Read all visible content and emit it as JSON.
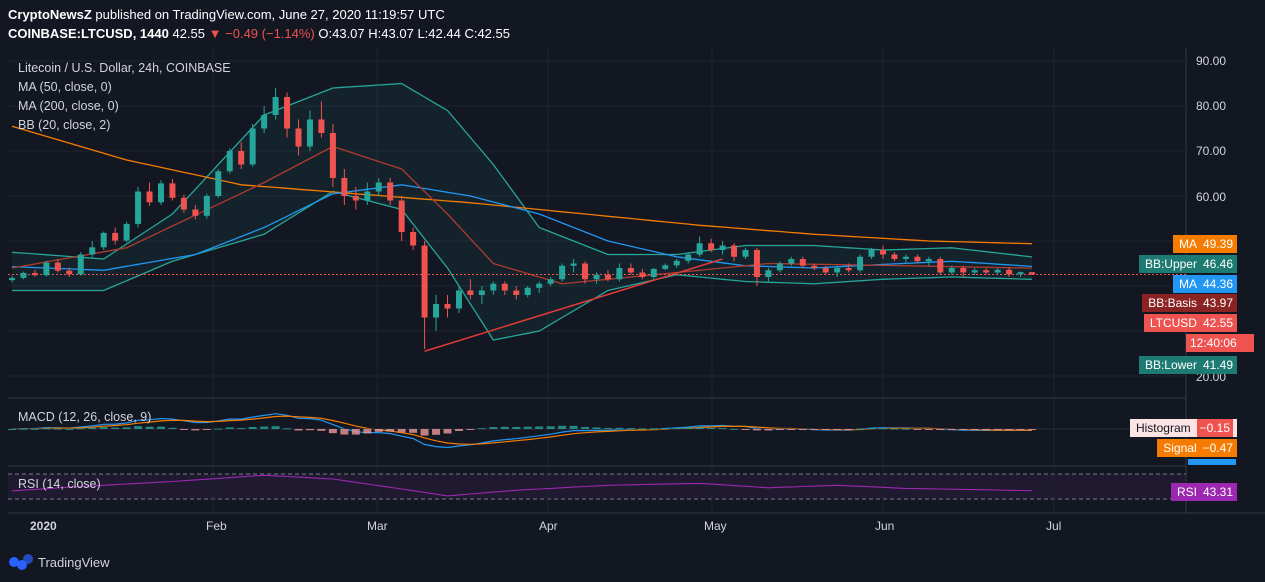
{
  "header": {
    "publisher": "CryptoNewsZ",
    "published_text": "published on TradingView.com, June 27, 2020 11:19:57 UTC",
    "symbol": "COINBASE:LTCUSD, 1440",
    "last": "42.55",
    "change": "−0.49 (−1.14%)",
    "open": "O:43.07",
    "high": "H:43.07",
    "low": "L:42.44",
    "close": "C:42.55"
  },
  "legend": {
    "title": "Litecoin / U.S. Dollar, 24h, COINBASE",
    "ma50": "MA (50, close, 0)",
    "ma200": "MA (200, close, 0)",
    "bb": "BB (20, close, 2)",
    "macd": "MACD (12, 26, close, 9)",
    "rsi": "RSI (14, close)"
  },
  "tags": {
    "ma200": {
      "label": "MA",
      "value": "49.39",
      "color": "#f57c00"
    },
    "bb_upper": {
      "label": "BB:Upper",
      "value": "46.46",
      "color": "#1e7b73"
    },
    "ma50": {
      "label": "MA",
      "value": "44.36",
      "color": "#2196f3"
    },
    "bb_basis": {
      "label": "BB:Basis",
      "value": "43.97",
      "color": "#8b2323"
    },
    "ltcusd": {
      "label": "LTCUSD",
      "value": "42.55",
      "color": "#ef5350"
    },
    "countdown": "12:40:06",
    "bb_lower": {
      "label": "BB:Lower",
      "value": "41.49",
      "color": "#1e7b73"
    },
    "histogram": {
      "label": "Histogram",
      "value": "−0.15",
      "color": "#fce4e4"
    },
    "signal": {
      "label": "Signal",
      "value": "−0.47",
      "color": "#f57c00"
    },
    "rsi": {
      "label": "RSI",
      "value": "43.31",
      "color": "#9c27b0"
    }
  },
  "footer": {
    "brand": "TradingView"
  },
  "chart_data": {
    "type": "candlestick",
    "price_axis": [
      "90.00",
      "80.00",
      "70.00",
      "60.00",
      "20.00"
    ],
    "time_axis": [
      "2020",
      "Feb",
      "Mar",
      "Apr",
      "May",
      "Jun",
      "Jul"
    ],
    "candles": [
      {
        "date": "2020-01-01",
        "o": 41.3,
        "h": 42.3,
        "l": 40.8,
        "c": 41.8
      },
      {
        "date": "2020-01-03",
        "o": 41.8,
        "h": 43.2,
        "l": 41.5,
        "c": 42.9
      },
      {
        "date": "2020-01-05",
        "o": 42.9,
        "h": 43.6,
        "l": 42.1,
        "c": 42.4
      },
      {
        "date": "2020-01-07",
        "o": 42.4,
        "h": 45.6,
        "l": 42.1,
        "c": 45.2
      },
      {
        "date": "2020-01-09",
        "o": 45.2,
        "h": 46.0,
        "l": 43.0,
        "c": 43.4
      },
      {
        "date": "2020-01-11",
        "o": 43.4,
        "h": 44.1,
        "l": 42.0,
        "c": 42.6
      },
      {
        "date": "2020-01-13",
        "o": 42.6,
        "h": 47.5,
        "l": 42.3,
        "c": 47.0
      },
      {
        "date": "2020-01-15",
        "o": 47.0,
        "h": 50.0,
        "l": 46.4,
        "c": 48.6
      },
      {
        "date": "2020-01-17",
        "o": 48.6,
        "h": 52.1,
        "l": 48.0,
        "c": 51.8
      },
      {
        "date": "2020-01-19",
        "o": 51.8,
        "h": 53.0,
        "l": 49.2,
        "c": 50.1
      },
      {
        "date": "2020-01-21",
        "o": 50.1,
        "h": 54.3,
        "l": 49.7,
        "c": 53.8
      },
      {
        "date": "2020-01-23",
        "o": 53.8,
        "h": 62.0,
        "l": 53.0,
        "c": 61.0
      },
      {
        "date": "2020-01-25",
        "o": 61.0,
        "h": 63.0,
        "l": 57.8,
        "c": 58.6
      },
      {
        "date": "2020-01-27",
        "o": 58.6,
        "h": 63.5,
        "l": 58.0,
        "c": 62.8
      },
      {
        "date": "2020-01-29",
        "o": 62.8,
        "h": 63.8,
        "l": 59.0,
        "c": 59.6
      },
      {
        "date": "2020-01-31",
        "o": 59.6,
        "h": 60.3,
        "l": 56.2,
        "c": 57.0
      },
      {
        "date": "2020-02-02",
        "o": 57.0,
        "h": 58.0,
        "l": 54.8,
        "c": 55.6
      },
      {
        "date": "2020-02-04",
        "o": 55.6,
        "h": 60.5,
        "l": 55.0,
        "c": 60.0
      },
      {
        "date": "2020-02-06",
        "o": 60.0,
        "h": 66.0,
        "l": 59.6,
        "c": 65.5
      },
      {
        "date": "2020-02-08",
        "o": 65.5,
        "h": 70.6,
        "l": 65.0,
        "c": 70.0
      },
      {
        "date": "2020-02-10",
        "o": 70.0,
        "h": 72.0,
        "l": 66.0,
        "c": 67.0
      },
      {
        "date": "2020-02-12",
        "o": 67.0,
        "h": 76.0,
        "l": 66.5,
        "c": 75.0
      },
      {
        "date": "2020-02-14",
        "o": 75.0,
        "h": 80.0,
        "l": 74.0,
        "c": 78.0
      },
      {
        "date": "2020-02-16",
        "o": 78.0,
        "h": 84.0,
        "l": 77.0,
        "c": 82.0
      },
      {
        "date": "2020-02-18",
        "o": 82.0,
        "h": 83.0,
        "l": 73.0,
        "c": 75.0
      },
      {
        "date": "2020-02-20",
        "o": 75.0,
        "h": 77.0,
        "l": 69.0,
        "c": 71.0
      },
      {
        "date": "2020-02-22",
        "o": 71.0,
        "h": 79.0,
        "l": 70.0,
        "c": 77.0
      },
      {
        "date": "2020-02-24",
        "o": 77.0,
        "h": 81.0,
        "l": 73.0,
        "c": 74.0
      },
      {
        "date": "2020-02-26",
        "o": 74.0,
        "h": 76.0,
        "l": 62.0,
        "c": 64.0
      },
      {
        "date": "2020-02-28",
        "o": 64.0,
        "h": 66.0,
        "l": 58.0,
        "c": 60.0
      },
      {
        "date": "2020-03-01",
        "o": 60.0,
        "h": 62.0,
        "l": 57.0,
        "c": 59.0
      },
      {
        "date": "2020-03-03",
        "o": 59.0,
        "h": 63.0,
        "l": 58.0,
        "c": 61.0
      },
      {
        "date": "2020-03-05",
        "o": 61.0,
        "h": 64.0,
        "l": 60.0,
        "c": 63.0
      },
      {
        "date": "2020-03-07",
        "o": 63.0,
        "h": 64.0,
        "l": 58.0,
        "c": 59.0
      },
      {
        "date": "2020-03-09",
        "o": 59.0,
        "h": 60.0,
        "l": 50.0,
        "c": 52.0
      },
      {
        "date": "2020-03-11",
        "o": 52.0,
        "h": 53.0,
        "l": 48.0,
        "c": 49.0
      },
      {
        "date": "2020-03-13",
        "o": 49.0,
        "h": 50.0,
        "l": 26.0,
        "c": 33.0
      },
      {
        "date": "2020-03-15",
        "o": 33.0,
        "h": 38.0,
        "l": 30.0,
        "c": 36.0
      },
      {
        "date": "2020-03-17",
        "o": 36.0,
        "h": 38.0,
        "l": 33.0,
        "c": 35.0
      },
      {
        "date": "2020-03-19",
        "o": 35.0,
        "h": 40.0,
        "l": 34.0,
        "c": 39.0
      },
      {
        "date": "2020-03-21",
        "o": 39.0,
        "h": 41.5,
        "l": 37.0,
        "c": 38.0
      },
      {
        "date": "2020-03-23",
        "o": 38.0,
        "h": 40.0,
        "l": 36.0,
        "c": 39.0
      },
      {
        "date": "2020-03-25",
        "o": 39.0,
        "h": 41.0,
        "l": 38.0,
        "c": 40.5
      },
      {
        "date": "2020-03-27",
        "o": 40.5,
        "h": 41.0,
        "l": 38.0,
        "c": 39.0
      },
      {
        "date": "2020-03-29",
        "o": 39.0,
        "h": 40.0,
        "l": 37.0,
        "c": 38.0
      },
      {
        "date": "2020-03-31",
        "o": 38.0,
        "h": 40.0,
        "l": 37.5,
        "c": 39.6
      },
      {
        "date": "2020-04-02",
        "o": 39.6,
        "h": 41.0,
        "l": 38.5,
        "c": 40.5
      },
      {
        "date": "2020-04-04",
        "o": 40.5,
        "h": 42.0,
        "l": 40.0,
        "c": 41.5
      },
      {
        "date": "2020-04-06",
        "o": 41.5,
        "h": 45.0,
        "l": 41.0,
        "c": 44.5
      },
      {
        "date": "2020-04-08",
        "o": 44.5,
        "h": 46.0,
        "l": 43.0,
        "c": 45.0
      },
      {
        "date": "2020-04-10",
        "o": 45.0,
        "h": 45.5,
        "l": 40.5,
        "c": 41.5
      },
      {
        "date": "2020-04-12",
        "o": 41.5,
        "h": 43.0,
        "l": 40.5,
        "c": 42.5
      },
      {
        "date": "2020-04-14",
        "o": 42.5,
        "h": 43.5,
        "l": 41.0,
        "c": 41.5
      },
      {
        "date": "2020-04-16",
        "o": 41.5,
        "h": 45.0,
        "l": 41.0,
        "c": 44.0
      },
      {
        "date": "2020-04-18",
        "o": 44.0,
        "h": 45.0,
        "l": 42.5,
        "c": 43.0
      },
      {
        "date": "2020-04-20",
        "o": 43.0,
        "h": 43.8,
        "l": 41.5,
        "c": 42.0
      },
      {
        "date": "2020-04-22",
        "o": 42.0,
        "h": 44.0,
        "l": 41.5,
        "c": 43.8
      },
      {
        "date": "2020-04-24",
        "o": 43.8,
        "h": 45.0,
        "l": 43.5,
        "c": 44.6
      },
      {
        "date": "2020-04-26",
        "o": 44.6,
        "h": 46.0,
        "l": 44.0,
        "c": 45.6
      },
      {
        "date": "2020-04-28",
        "o": 45.6,
        "h": 47.5,
        "l": 45.0,
        "c": 47.0
      },
      {
        "date": "2020-04-30",
        "o": 47.0,
        "h": 51.0,
        "l": 46.5,
        "c": 49.5
      },
      {
        "date": "2020-05-02",
        "o": 49.5,
        "h": 50.5,
        "l": 47.5,
        "c": 48.0
      },
      {
        "date": "2020-05-04",
        "o": 48.0,
        "h": 50.0,
        "l": 47.0,
        "c": 49.0
      },
      {
        "date": "2020-05-06",
        "o": 49.0,
        "h": 49.5,
        "l": 45.5,
        "c": 46.5
      },
      {
        "date": "2020-05-08",
        "o": 46.5,
        "h": 48.5,
        "l": 46.0,
        "c": 48.0
      },
      {
        "date": "2020-05-10",
        "o": 48.0,
        "h": 48.5,
        "l": 40.0,
        "c": 42.0
      },
      {
        "date": "2020-05-12",
        "o": 42.0,
        "h": 44.0,
        "l": 41.0,
        "c": 43.5
      },
      {
        "date": "2020-05-14",
        "o": 43.5,
        "h": 45.5,
        "l": 43.0,
        "c": 45.0
      },
      {
        "date": "2020-05-16",
        "o": 45.0,
        "h": 46.5,
        "l": 44.5,
        "c": 46.0
      },
      {
        "date": "2020-05-18",
        "o": 46.0,
        "h": 46.5,
        "l": 44.0,
        "c": 44.5
      },
      {
        "date": "2020-05-20",
        "o": 44.5,
        "h": 45.0,
        "l": 43.5,
        "c": 44.0
      },
      {
        "date": "2020-05-22",
        "o": 44.0,
        "h": 44.5,
        "l": 42.5,
        "c": 43.0
      },
      {
        "date": "2020-05-24",
        "o": 43.0,
        "h": 44.5,
        "l": 42.0,
        "c": 44.0
      },
      {
        "date": "2020-05-26",
        "o": 44.0,
        "h": 45.0,
        "l": 43.0,
        "c": 43.5
      },
      {
        "date": "2020-05-28",
        "o": 43.5,
        "h": 47.0,
        "l": 43.0,
        "c": 46.5
      },
      {
        "date": "2020-05-30",
        "o": 46.5,
        "h": 48.5,
        "l": 46.0,
        "c": 48.0
      },
      {
        "date": "2020-06-01",
        "o": 48.0,
        "h": 49.0,
        "l": 46.0,
        "c": 47.0
      },
      {
        "date": "2020-06-03",
        "o": 47.0,
        "h": 47.5,
        "l": 45.5,
        "c": 46.0
      },
      {
        "date": "2020-06-05",
        "o": 46.0,
        "h": 47.0,
        "l": 45.0,
        "c": 46.5
      },
      {
        "date": "2020-06-07",
        "o": 46.5,
        "h": 47.0,
        "l": 45.0,
        "c": 45.5
      },
      {
        "date": "2020-06-09",
        "o": 45.5,
        "h": 46.5,
        "l": 44.5,
        "c": 46.0
      },
      {
        "date": "2020-06-11",
        "o": 46.0,
        "h": 46.5,
        "l": 42.5,
        "c": 43.0
      },
      {
        "date": "2020-06-13",
        "o": 43.0,
        "h": 44.5,
        "l": 42.5,
        "c": 44.0
      },
      {
        "date": "2020-06-15",
        "o": 44.0,
        "h": 44.5,
        "l": 42.0,
        "c": 43.0
      },
      {
        "date": "2020-06-17",
        "o": 43.0,
        "h": 44.0,
        "l": 42.5,
        "c": 43.5
      },
      {
        "date": "2020-06-19",
        "o": 43.5,
        "h": 44.0,
        "l": 42.5,
        "c": 43.0
      },
      {
        "date": "2020-06-21",
        "o": 43.0,
        "h": 44.0,
        "l": 42.6,
        "c": 43.6
      },
      {
        "date": "2020-06-23",
        "o": 43.6,
        "h": 44.2,
        "l": 42.0,
        "c": 42.6
      },
      {
        "date": "2020-06-25",
        "o": 42.6,
        "h": 43.2,
        "l": 42.0,
        "c": 43.07
      },
      {
        "date": "2020-06-27",
        "o": 43.07,
        "h": 43.07,
        "l": 42.44,
        "c": 42.55
      }
    ],
    "ma50": [
      [
        0,
        44.3
      ],
      [
        8,
        43.5
      ],
      [
        16,
        47.0
      ],
      [
        22,
        53.0
      ],
      [
        28,
        60.5
      ],
      [
        34,
        62.5
      ],
      [
        40,
        60.0
      ],
      [
        46,
        56.0
      ],
      [
        52,
        50.0
      ],
      [
        58,
        46.5
      ],
      [
        64,
        44.5
      ],
      [
        70,
        44.0
      ],
      [
        76,
        44.8
      ],
      [
        82,
        45.5
      ],
      [
        89,
        44.36
      ]
    ],
    "ma200": [
      [
        0,
        75.5
      ],
      [
        10,
        68.0
      ],
      [
        20,
        62.5
      ],
      [
        30,
        60.5
      ],
      [
        40,
        58.5
      ],
      [
        50,
        56.0
      ],
      [
        60,
        53.5
      ],
      [
        70,
        51.5
      ],
      [
        80,
        50.0
      ],
      [
        89,
        49.39
      ]
    ],
    "ma200_prior": [
      [
        0,
        44.0
      ],
      [
        10,
        48.5
      ],
      [
        22,
        63.0
      ],
      [
        28,
        71.0
      ],
      [
        34,
        66.0
      ],
      [
        38,
        56.0
      ],
      [
        42,
        45.0
      ],
      [
        48,
        40.5
      ],
      [
        56,
        42.5
      ],
      [
        66,
        45.0
      ],
      [
        78,
        44.5
      ],
      [
        89,
        43.97
      ]
    ],
    "bb_upper": [
      [
        0,
        47.5
      ],
      [
        8,
        46.0
      ],
      [
        14,
        56.0
      ],
      [
        22,
        78.0
      ],
      [
        28,
        84.0
      ],
      [
        34,
        85.0
      ],
      [
        38,
        79.0
      ],
      [
        42,
        67.0
      ],
      [
        46,
        53.0
      ],
      [
        52,
        47.0
      ],
      [
        58,
        47.0
      ],
      [
        64,
        49.0
      ],
      [
        70,
        49.0
      ],
      [
        76,
        48.0
      ],
      [
        82,
        48.5
      ],
      [
        89,
        46.46
      ]
    ],
    "bb_lower": [
      [
        0,
        39.0
      ],
      [
        8,
        39.0
      ],
      [
        14,
        45.5
      ],
      [
        22,
        51.5
      ],
      [
        28,
        61.0
      ],
      [
        34,
        57.0
      ],
      [
        38,
        44.0
      ],
      [
        42,
        28.0
      ],
      [
        46,
        30.0
      ],
      [
        52,
        39.0
      ],
      [
        58,
        42.5
      ],
      [
        64,
        41.0
      ],
      [
        70,
        40.5
      ],
      [
        76,
        41.5
      ],
      [
        82,
        42.0
      ],
      [
        89,
        41.49
      ]
    ],
    "trendline": [
      [
        36,
        25.5
      ],
      [
        62,
        46.0
      ]
    ],
    "rsi": [
      [
        0,
        43.0
      ],
      [
        6,
        50.0
      ],
      [
        14,
        58.0
      ],
      [
        22,
        68.0
      ],
      [
        28,
        62.0
      ],
      [
        34,
        46.0
      ],
      [
        38,
        35.0
      ],
      [
        44,
        44.0
      ],
      [
        52,
        52.0
      ],
      [
        60,
        55.0
      ],
      [
        66,
        48.0
      ],
      [
        72,
        52.0
      ],
      [
        78,
        47.0
      ],
      [
        84,
        45.0
      ],
      [
        89,
        43.31
      ]
    ]
  }
}
